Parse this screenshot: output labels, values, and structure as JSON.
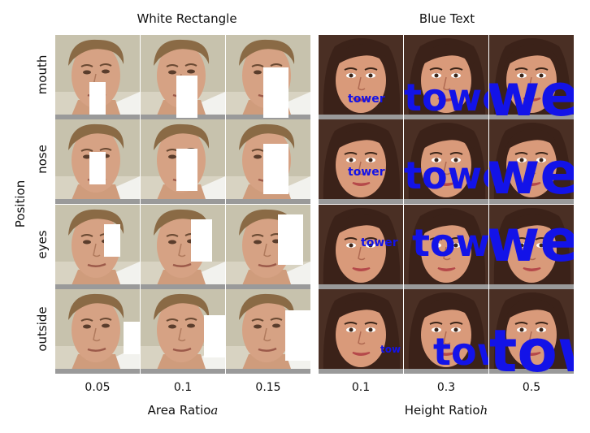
{
  "panels": {
    "left_title": "White Rectangle",
    "right_title": "Blue Text",
    "y_axis_label": "Position",
    "row_labels": [
      "mouth",
      "nose",
      "eyes",
      "outside"
    ],
    "left_x_label": "Area Ratio",
    "left_x_var": "a",
    "right_x_label": "Height Ratio",
    "right_x_var": "h",
    "left_col_labels": [
      "0.05",
      "0.1",
      "0.15"
    ],
    "right_col_labels": [
      "0.1",
      "0.3",
      "0.5"
    ]
  },
  "overlay": {
    "text_word": "tower",
    "text_color": "#1313e8",
    "rect_color": "#ffffff"
  }
}
